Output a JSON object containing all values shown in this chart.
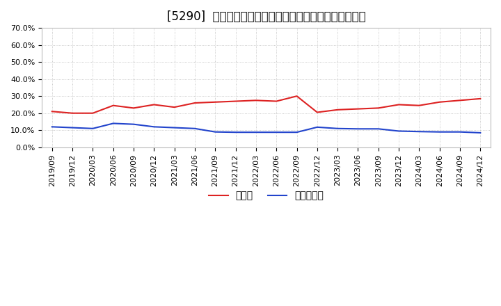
{
  "title": "[5290]  現頰金、有利子負債の総資産に対する比率の推移",
  "x_labels": [
    "2019/09",
    "2019/12",
    "2020/03",
    "2020/06",
    "2020/09",
    "2020/12",
    "2021/03",
    "2021/06",
    "2021/09",
    "2021/12",
    "2022/03",
    "2022/06",
    "2022/09",
    "2022/12",
    "2023/03",
    "2023/06",
    "2023/09",
    "2023/12",
    "2024/03",
    "2024/06",
    "2024/09",
    "2024/12"
  ],
  "cash_values": [
    0.21,
    0.2,
    0.2,
    0.245,
    0.23,
    0.25,
    0.235,
    0.26,
    0.265,
    0.27,
    0.275,
    0.27,
    0.3,
    0.205,
    0.22,
    0.225,
    0.23,
    0.25,
    0.245,
    0.265,
    0.275,
    0.285
  ],
  "debt_values": [
    0.12,
    0.115,
    0.11,
    0.14,
    0.135,
    0.12,
    0.115,
    0.11,
    0.09,
    0.088,
    0.088,
    0.088,
    0.088,
    0.118,
    0.11,
    0.108,
    0.108,
    0.095,
    0.092,
    0.09,
    0.09,
    0.085
  ],
  "cash_color": "#dd2222",
  "debt_color": "#2244cc",
  "ylim": [
    0.0,
    0.7
  ],
  "yticks": [
    0.0,
    0.1,
    0.2,
    0.3,
    0.4,
    0.5,
    0.6,
    0.7
  ],
  "background_color": "#ffffff",
  "grid_color": "#aaaaaa",
  "legend_cash": "現頰金",
  "legend_debt": "有利子負債",
  "title_fontsize": 12,
  "tick_fontsize": 8,
  "legend_fontsize": 10
}
